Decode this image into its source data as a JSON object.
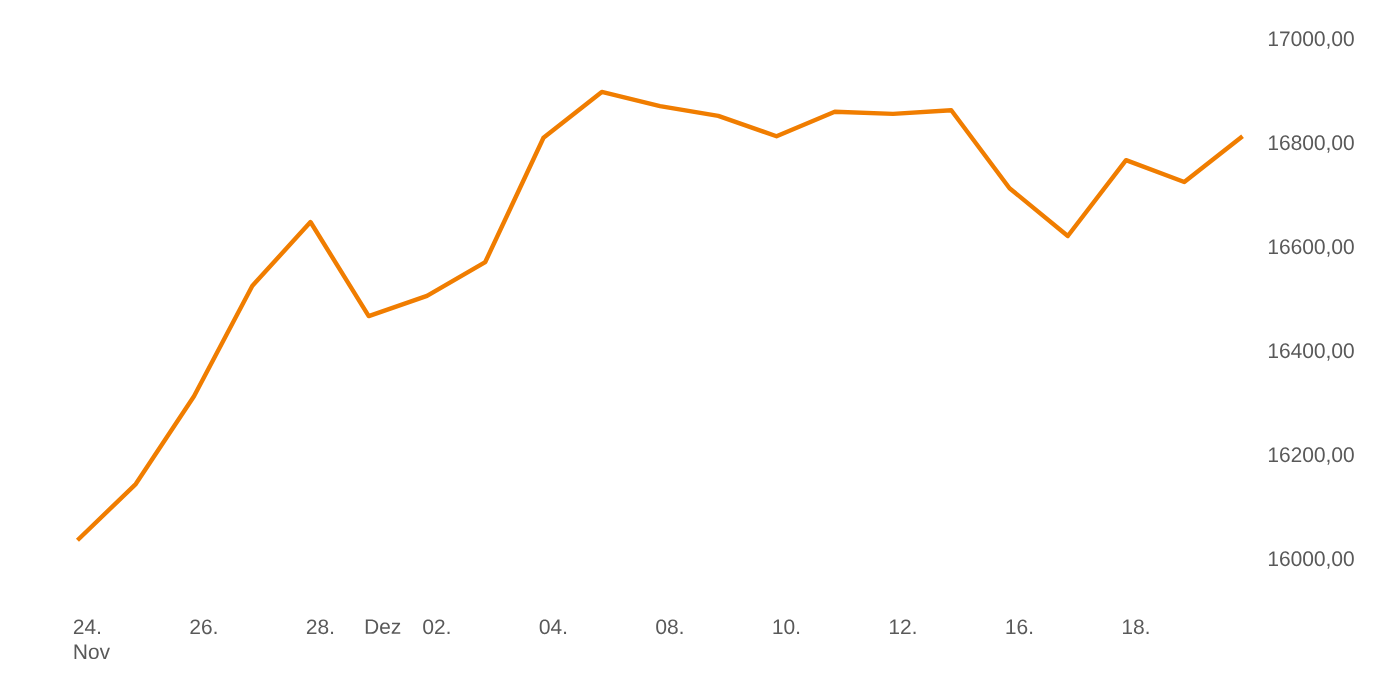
{
  "chart_data": {
    "type": "line",
    "categories": [
      "24. Nov",
      null,
      "26.",
      null,
      "28.",
      "Dez",
      "02.",
      null,
      "04.",
      null,
      "08.",
      null,
      "10.",
      null,
      "12.",
      null,
      "16.",
      null,
      "18.",
      null,
      null
    ],
    "series": [
      {
        "color": "#f07d00",
        "values": [
          16038,
          16146,
          16315,
          16527,
          16650,
          16469,
          16508,
          16573,
          16812,
          16900,
          16873,
          16854,
          16815,
          16862,
          16858,
          16865,
          16715,
          16623,
          16769,
          16727,
          16815
        ]
      }
    ],
    "ylim": [
      16000,
      17000
    ],
    "yticks": [
      {
        "value": 16000,
        "label": "16000,00"
      },
      {
        "value": 16200,
        "label": "16200,00"
      },
      {
        "value": 16400,
        "label": "16400,00"
      },
      {
        "value": 16600,
        "label": "16600,00"
      },
      {
        "value": 16800,
        "label": "16800,00"
      },
      {
        "value": 17000,
        "label": "17000,00"
      }
    ],
    "grid": false,
    "marker": "none",
    "line_style": "solid"
  }
}
